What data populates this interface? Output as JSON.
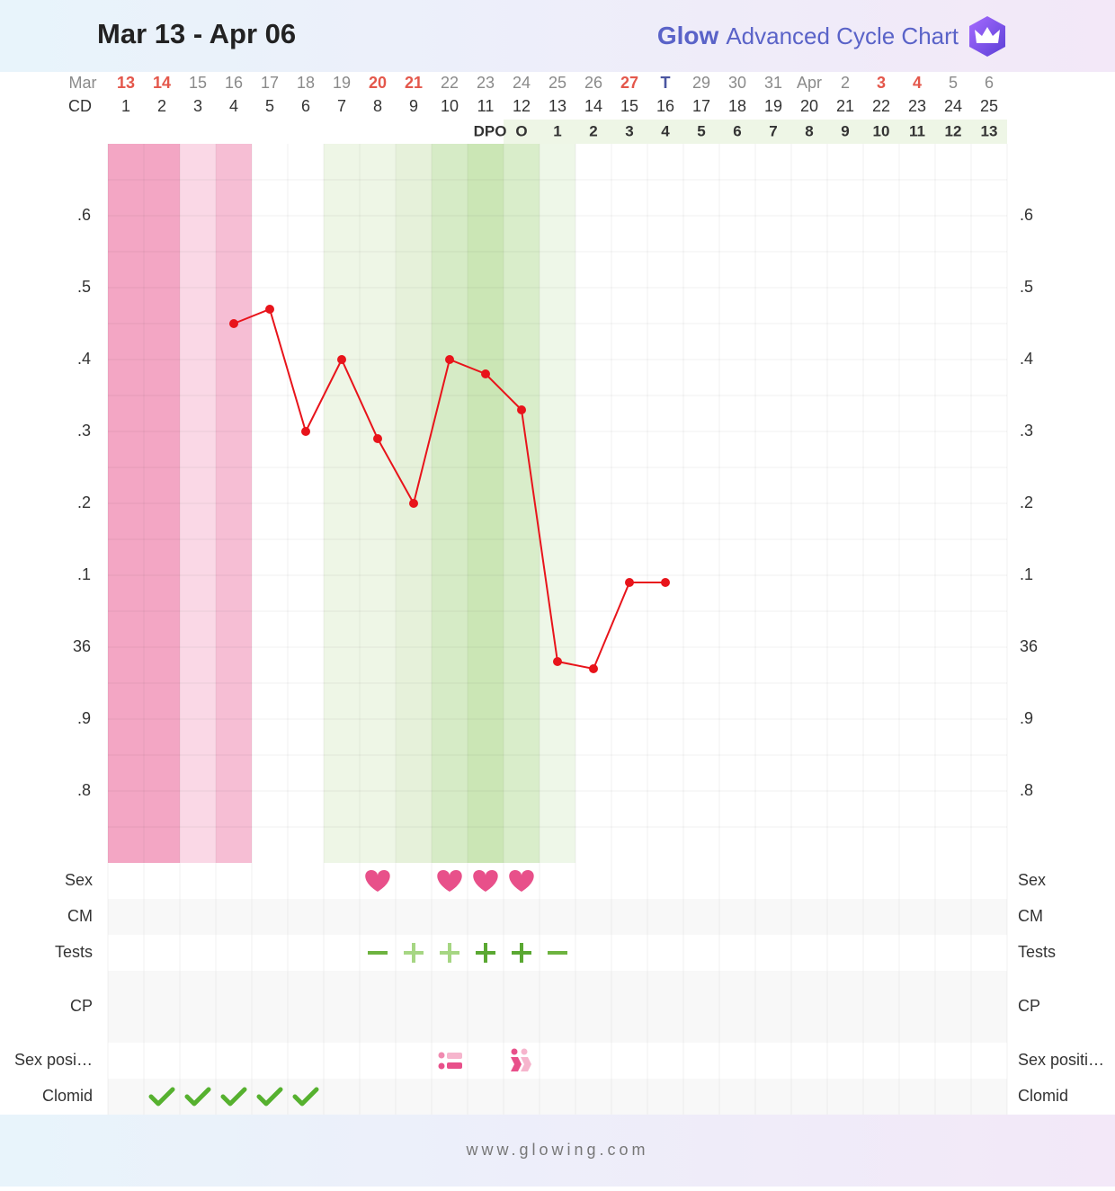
{
  "chart_data": {
    "type": "line",
    "title": "Mar 13 - Apr 06",
    "brand": "Glow",
    "subtitle": "Advanced Cycle Chart",
    "footer": "www.glowing.com",
    "month_label": "Mar",
    "dates": [
      "13",
      "14",
      "15",
      "16",
      "17",
      "18",
      "19",
      "20",
      "21",
      "22",
      "23",
      "24",
      "25",
      "26",
      "27",
      "T",
      "29",
      "30",
      "31",
      "Apr",
      "2",
      "3",
      "4",
      "5",
      "6"
    ],
    "date_colors": [
      "#e4574b",
      "#e4574b",
      "#8a8a8a",
      "#8a8a8a",
      "#8a8a8a",
      "#8a8a8a",
      "#8a8a8a",
      "#e4574b",
      "#e4574b",
      "#8a8a8a",
      "#8a8a8a",
      "#8a8a8a",
      "#8a8a8a",
      "#8a8a8a",
      "#e4574b",
      "#4a55a0",
      "#8a8a8a",
      "#8a8a8a",
      "#8a8a8a",
      "#8a8a8a",
      "#8a8a8a",
      "#e4574b",
      "#e4574b",
      "#8a8a8a",
      "#8a8a8a"
    ],
    "cd_label": "CD",
    "cd": [
      1,
      2,
      3,
      4,
      5,
      6,
      7,
      8,
      9,
      10,
      11,
      12,
      13,
      14,
      15,
      16,
      17,
      18,
      19,
      20,
      21,
      22,
      23,
      24,
      25
    ],
    "dpo": [
      null,
      null,
      null,
      null,
      null,
      null,
      null,
      null,
      null,
      null,
      "DPO",
      "O",
      1,
      2,
      3,
      4,
      5,
      6,
      7,
      8,
      9,
      10,
      11,
      12,
      13
    ],
    "band_colors": [
      "#f3a6c4",
      "#f3a6c4",
      "#fad8e6",
      "#f6bed4",
      null,
      null,
      "#eef6e6",
      "#eef6e6",
      "#e6f1da",
      "#d6ebc6",
      "#cbe6b5",
      "#d9edca",
      "#eef7e8",
      null,
      null,
      null,
      null,
      null,
      null,
      null,
      null,
      null,
      null,
      null,
      null
    ],
    "series": [
      {
        "color": "#e8141b",
        "values": [
          null,
          null,
          null,
          36.45,
          36.47,
          36.3,
          36.4,
          36.29,
          36.2,
          36.4,
          36.38,
          36.33,
          35.98,
          35.97,
          36.09,
          36.09,
          null,
          null,
          null,
          null,
          null,
          null,
          null,
          null,
          null
        ]
      }
    ],
    "ylim": [
      35.7,
      36.7
    ],
    "yticks": [
      {
        "value": 36.6,
        "label": ".6"
      },
      {
        "value": 36.5,
        "label": ".5"
      },
      {
        "value": 36.4,
        "label": ".4"
      },
      {
        "value": 36.3,
        "label": ".3"
      },
      {
        "value": 36.2,
        "label": ".2"
      },
      {
        "value": 36.1,
        "label": ".1"
      },
      36,
      {
        "value": 35.9,
        "label": ".9"
      },
      {
        "value": 35.8,
        "label": ".8"
      }
    ],
    "yticks_minor": [
      36.65,
      36.55,
      36.45,
      36.35,
      36.25,
      36.15,
      36.05,
      35.95,
      35.85,
      35.75
    ],
    "grid": true,
    "rows": [
      {
        "label": "Sex",
        "label_right": "Sex",
        "icons": [
          null,
          null,
          null,
          null,
          null,
          null,
          null,
          "heart",
          null,
          "heart",
          "heart",
          "heart",
          null,
          null,
          null,
          null,
          null,
          null,
          null,
          null,
          null,
          null,
          null,
          null,
          null
        ]
      },
      {
        "label": "CM",
        "label_right": "CM",
        "icons": [
          null,
          null,
          null,
          null,
          null,
          null,
          null,
          null,
          null,
          null,
          null,
          null,
          null,
          null,
          null,
          null,
          null,
          null,
          null,
          null,
          null,
          null,
          null,
          null,
          null
        ]
      },
      {
        "label": "Tests",
        "label_right": "Tests",
        "icons": [
          null,
          null,
          null,
          null,
          null,
          null,
          null,
          "minus",
          "plus-light",
          "plus-light",
          "plus",
          "plus",
          "minus",
          null,
          null,
          null,
          null,
          null,
          null,
          null,
          null,
          null,
          null,
          null,
          null
        ]
      },
      {
        "label": "CP",
        "label_right": "CP",
        "icons": [
          null,
          null,
          null,
          null,
          null,
          null,
          null,
          null,
          null,
          null,
          null,
          null,
          null,
          null,
          null,
          null,
          null,
          null,
          null,
          null,
          null,
          null,
          null,
          null,
          null
        ]
      },
      {
        "label": "Sex posi…",
        "label_right": "Sex positi…",
        "icons": [
          null,
          null,
          null,
          null,
          null,
          null,
          null,
          null,
          null,
          "pos-a",
          null,
          "pos-b",
          null,
          null,
          null,
          null,
          null,
          null,
          null,
          null,
          null,
          null,
          null,
          null,
          null
        ]
      },
      {
        "label": "Clomid",
        "label_right": "Clomid",
        "icons": [
          null,
          "check",
          "check",
          "check",
          "check",
          "check",
          null,
          null,
          null,
          null,
          null,
          null,
          null,
          null,
          null,
          null,
          null,
          null,
          null,
          null,
          null,
          null,
          null,
          null,
          null
        ]
      }
    ]
  }
}
